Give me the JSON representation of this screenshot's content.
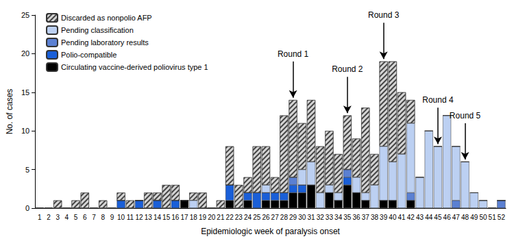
{
  "chart_data": {
    "type": "bar",
    "stacked": true,
    "grid": false,
    "legend": "top-left",
    "x_label": "Epidemiologic week of paralysis onset",
    "y_label": "No. of cases",
    "categories": [
      1,
      2,
      3,
      4,
      5,
      6,
      7,
      8,
      9,
      10,
      11,
      12,
      13,
      14,
      15,
      16,
      17,
      18,
      19,
      20,
      21,
      22,
      23,
      24,
      25,
      26,
      27,
      28,
      29,
      30,
      31,
      32,
      33,
      34,
      35,
      36,
      37,
      38,
      39,
      40,
      41,
      42,
      43,
      44,
      45,
      46,
      47,
      48,
      49,
      50,
      51,
      52
    ],
    "ylim": [
      0,
      25
    ],
    "yticks": [
      0,
      5,
      10,
      15,
      20,
      25
    ],
    "series": [
      {
        "name": "Circulating vaccine-derived poliovirus type 1",
        "color": "#000000",
        "values": [
          0,
          0,
          0,
          0,
          0,
          0,
          0,
          0,
          0,
          0,
          0,
          0,
          0,
          0,
          0,
          0,
          1,
          0,
          0,
          0,
          0,
          1,
          0,
          1,
          0,
          1,
          1,
          1,
          2,
          2,
          3,
          0,
          2,
          1,
          3,
          2,
          1,
          0,
          1,
          1,
          0,
          1,
          0,
          0,
          0,
          0,
          0,
          0,
          0,
          0,
          0,
          0
        ]
      },
      {
        "name": "Polio-compatible",
        "color": "#1a5fd8",
        "values": [
          0,
          0,
          0,
          0,
          0,
          0,
          0,
          0,
          0,
          1,
          0,
          1,
          0,
          1,
          0,
          1,
          0,
          0,
          0,
          0,
          0,
          2,
          0,
          1,
          2,
          1,
          1,
          1,
          1,
          1,
          0,
          0,
          0,
          0,
          1,
          0,
          0,
          0,
          0,
          0,
          0,
          0,
          0,
          0,
          0,
          0,
          0,
          0,
          0,
          0,
          0,
          0
        ]
      },
      {
        "name": "Pending laboratory results",
        "color": "#5b80d2",
        "values": [
          0,
          0,
          0,
          0,
          0,
          0,
          0,
          0,
          0,
          0,
          0,
          0,
          0,
          0,
          0,
          0,
          0,
          0,
          0,
          0,
          0,
          0,
          0,
          0,
          0,
          0,
          0,
          0,
          1,
          0,
          0,
          0,
          0,
          0,
          1,
          0,
          0,
          0,
          0,
          0,
          0,
          1,
          0,
          0,
          0,
          0,
          1,
          0,
          0,
          0,
          0,
          1
        ]
      },
      {
        "name": "Pending classification",
        "color": "#bcd0f2",
        "values": [
          0,
          0,
          0,
          0,
          0,
          0,
          0,
          0,
          0,
          0,
          0,
          0,
          0,
          0,
          0,
          0,
          0,
          1,
          0,
          0,
          0,
          0,
          0,
          0,
          0,
          1,
          0,
          0,
          0,
          2,
          3,
          2,
          1,
          1,
          0,
          2,
          1,
          3,
          7,
          5,
          7,
          9,
          4,
          10,
          8,
          12,
          7,
          6,
          2,
          1,
          0,
          0
        ]
      },
      {
        "name": "Discarded as nonpolio AFP",
        "color": "#d4d4d4",
        "marker": "hatched",
        "values": [
          0,
          0,
          1,
          0,
          1,
          2,
          0,
          1,
          0,
          1,
          1,
          0,
          2,
          1,
          3,
          2,
          0,
          1,
          2,
          0,
          1,
          5,
          3,
          2,
          6,
          5,
          2,
          10,
          10,
          6,
          8,
          6,
          7,
          5,
          7,
          5,
          11,
          4,
          11,
          13,
          8,
          3,
          0,
          0,
          0,
          0,
          0,
          0,
          0,
          0,
          0,
          0
        ]
      }
    ],
    "annotations": [
      {
        "text": "Round 1",
        "x": 29
      },
      {
        "text": "Round 2",
        "x": 35
      },
      {
        "text": "Round 3",
        "x": 39
      },
      {
        "text": "Round 4",
        "x": 45
      },
      {
        "text": "Round 5",
        "x": 48
      }
    ]
  }
}
